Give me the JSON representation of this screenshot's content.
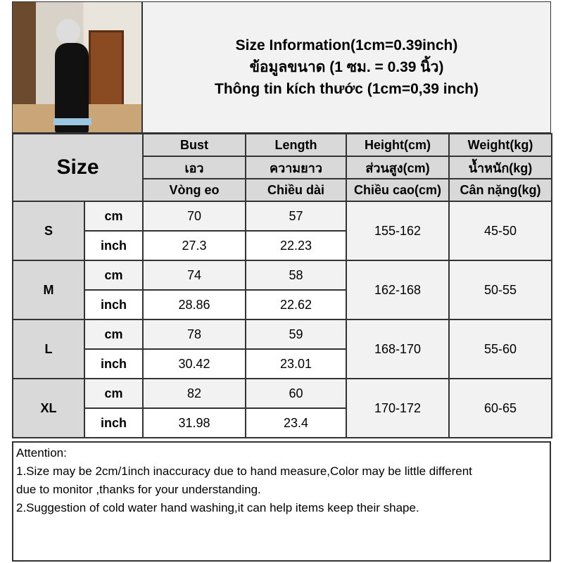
{
  "title_lines": [
    "Size Information(1cm=0.39inch)",
    "ข้อมูลขนาด (1 ซม. = 0.39 นิ้ว)",
    "Thông tin kích thước (1cm=0,39 inch)"
  ],
  "size_header": "Size",
  "columns": [
    {
      "en": "Bust",
      "th": "เอว",
      "vi": "Vòng eo"
    },
    {
      "en": "Length",
      "th": "ความยาว",
      "vi": "Chiều dài"
    },
    {
      "en": "Height(cm)",
      "th": "ส่วนสูง(cm)",
      "vi": "Chiều cao(cm)"
    },
    {
      "en": "Weight(kg)",
      "th": "น้ำหนัก(kg)",
      "vi": "Cân nặng(kg)"
    }
  ],
  "units": {
    "cm": "cm",
    "inch": "inch"
  },
  "rows": [
    {
      "size": "S",
      "bust_cm": "70",
      "length_cm": "57",
      "bust_in": "27.3",
      "length_in": "22.23",
      "height": "155-162",
      "weight": "45-50"
    },
    {
      "size": "M",
      "bust_cm": "74",
      "length_cm": "58",
      "bust_in": "28.86",
      "length_in": "22.62",
      "height": "162-168",
      "weight": "50-55"
    },
    {
      "size": "L",
      "bust_cm": "78",
      "length_cm": "59",
      "bust_in": "30.42",
      "length_in": "23.01",
      "height": "168-170",
      "weight": "55-60"
    },
    {
      "size": "XL",
      "bust_cm": "82",
      "length_cm": "60",
      "bust_in": "31.98",
      "length_in": "23.4",
      "height": "170-172",
      "weight": "60-65"
    }
  ],
  "attention": {
    "heading": "Attention:",
    "line1": "1.Size may be 2cm/1inch inaccuracy due to hand measure,Color may be little different",
    "line1b": "due to monitor ,thanks for your understanding.",
    "line2": "2.Suggestion of cold water hand washing,it can help items keep their shape."
  }
}
